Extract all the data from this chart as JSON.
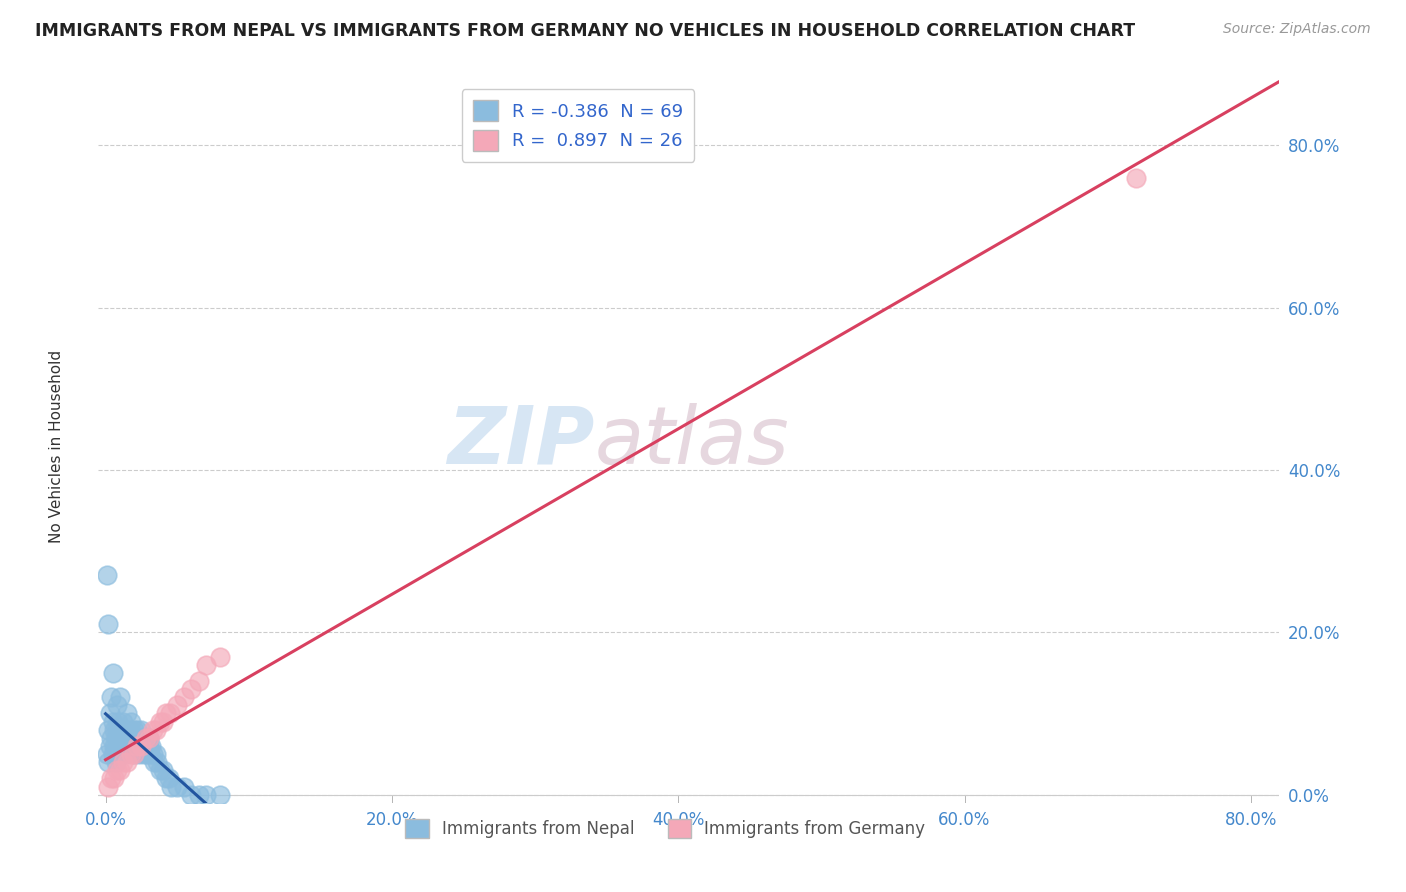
{
  "title": "IMMIGRANTS FROM NEPAL VS IMMIGRANTS FROM GERMANY NO VEHICLES IN HOUSEHOLD CORRELATION CHART",
  "source": "Source: ZipAtlas.com",
  "ylabel": "No Vehicles in Household",
  "legend_nepal": "Immigrants from Nepal",
  "legend_germany": "Immigrants from Germany",
  "R_nepal": -0.386,
  "N_nepal": 69,
  "R_germany": 0.897,
  "N_germany": 26,
  "xlim": [
    -0.005,
    0.82
  ],
  "ylim": [
    -0.01,
    0.88
  ],
  "xticks": [
    0.0,
    0.2,
    0.4,
    0.6,
    0.8
  ],
  "yticks": [
    0.0,
    0.2,
    0.4,
    0.6,
    0.8
  ],
  "color_nepal": "#8BBCDE",
  "color_germany": "#F4A8B8",
  "line_color_nepal": "#2255A0",
  "line_color_germany": "#D84060",
  "background_color": "#ffffff",
  "watermark_zip": "ZIP",
  "watermark_atlas": "atlas",
  "nepal_x": [
    0.001,
    0.002,
    0.002,
    0.003,
    0.003,
    0.004,
    0.004,
    0.005,
    0.005,
    0.005,
    0.006,
    0.006,
    0.007,
    0.007,
    0.008,
    0.008,
    0.009,
    0.009,
    0.01,
    0.01,
    0.01,
    0.011,
    0.011,
    0.012,
    0.012,
    0.013,
    0.014,
    0.014,
    0.015,
    0.015,
    0.016,
    0.017,
    0.018,
    0.018,
    0.019,
    0.02,
    0.02,
    0.021,
    0.022,
    0.022,
    0.023,
    0.024,
    0.025,
    0.025,
    0.026,
    0.027,
    0.028,
    0.029,
    0.03,
    0.03,
    0.031,
    0.032,
    0.033,
    0.034,
    0.035,
    0.036,
    0.038,
    0.04,
    0.042,
    0.044,
    0.046,
    0.05,
    0.055,
    0.06,
    0.065,
    0.07,
    0.08,
    0.002,
    0.001
  ],
  "nepal_y": [
    0.05,
    0.08,
    0.04,
    0.06,
    0.1,
    0.07,
    0.12,
    0.05,
    0.09,
    0.15,
    0.06,
    0.08,
    0.07,
    0.04,
    0.08,
    0.11,
    0.06,
    0.09,
    0.07,
    0.12,
    0.05,
    0.08,
    0.06,
    0.09,
    0.07,
    0.05,
    0.08,
    0.06,
    0.07,
    0.1,
    0.06,
    0.08,
    0.07,
    0.09,
    0.06,
    0.08,
    0.05,
    0.07,
    0.06,
    0.08,
    0.05,
    0.07,
    0.08,
    0.06,
    0.07,
    0.05,
    0.06,
    0.05,
    0.06,
    0.07,
    0.05,
    0.06,
    0.05,
    0.04,
    0.05,
    0.04,
    0.03,
    0.03,
    0.02,
    0.02,
    0.01,
    0.01,
    0.01,
    0.0,
    0.0,
    0.0,
    0.0,
    0.21,
    0.27
  ],
  "germany_x": [
    0.002,
    0.004,
    0.006,
    0.008,
    0.01,
    0.012,
    0.015,
    0.018,
    0.02,
    0.022,
    0.025,
    0.028,
    0.03,
    0.033,
    0.035,
    0.038,
    0.04,
    0.042,
    0.045,
    0.05,
    0.055,
    0.06,
    0.065,
    0.07,
    0.08,
    0.72
  ],
  "germany_y": [
    0.01,
    0.02,
    0.02,
    0.03,
    0.03,
    0.04,
    0.04,
    0.05,
    0.05,
    0.06,
    0.06,
    0.07,
    0.07,
    0.08,
    0.08,
    0.09,
    0.09,
    0.1,
    0.1,
    0.11,
    0.12,
    0.13,
    0.14,
    0.16,
    0.17,
    0.76
  ]
}
